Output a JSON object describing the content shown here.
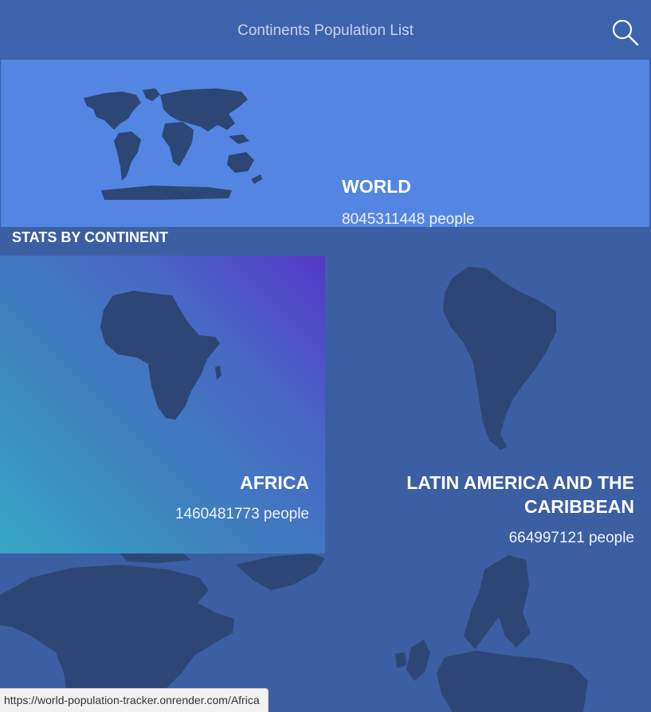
{
  "header": {
    "title": "Continents Population List",
    "search_icon": "search-icon"
  },
  "world": {
    "name": "WORLD",
    "population": "8045311448 people"
  },
  "section": {
    "title": "STATS BY CONTINENT"
  },
  "continents": [
    {
      "name": "AFRICA",
      "population": "1460481773 people"
    },
    {
      "name": "LATIN AMERICA AND THE CARIBBEAN",
      "population": "664997121 people"
    },
    {
      "name": "",
      "population": ""
    },
    {
      "name": "",
      "population": ""
    }
  ],
  "status_bar": {
    "url": "https://world-population-tracker.onrender.com/Africa"
  },
  "colors": {
    "header_bg": "#3e63ad",
    "world_card_bg": "#5485e2",
    "page_bg": "#3c5fa3",
    "map_fill": "#2c4775"
  }
}
